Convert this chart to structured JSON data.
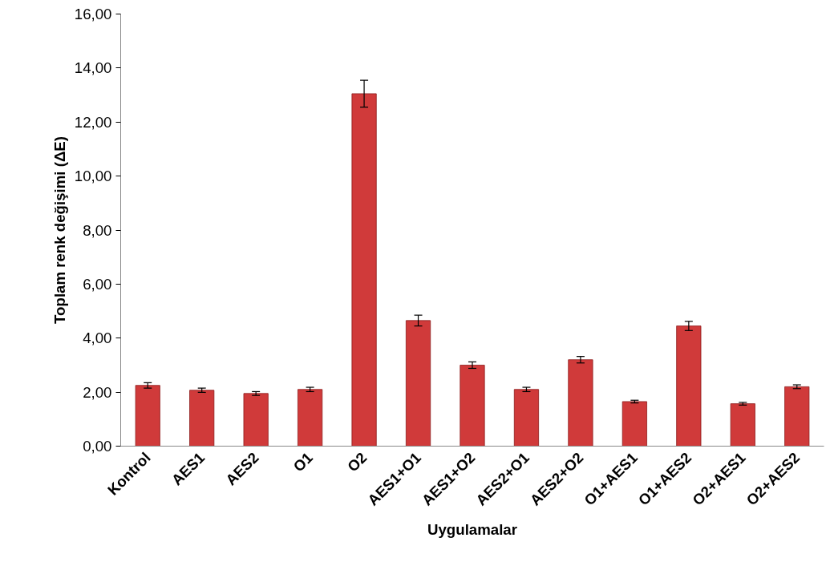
{
  "chart_data": {
    "type": "bar",
    "xlabel": "Uygulamalar",
    "ylabel": "Toplam renk değişimi (ΔE)",
    "categories": [
      "Kontrol",
      "AES1",
      "AES2",
      "O1",
      "O2",
      "AES1+O1",
      "AES1+O2",
      "AES2+O1",
      "AES2+O2",
      "O1+AES1",
      "O1+AES2",
      "O2+AES1",
      "O2+AES2"
    ],
    "values": [
      2.25,
      2.07,
      1.95,
      2.1,
      13.05,
      4.65,
      3.0,
      2.1,
      3.2,
      1.65,
      4.45,
      1.57,
      2.2
    ],
    "errors": [
      0.1,
      0.08,
      0.07,
      0.08,
      0.5,
      0.2,
      0.12,
      0.08,
      0.12,
      0.05,
      0.17,
      0.05,
      0.07
    ],
    "color": "#d03a3a",
    "ylim": [
      0,
      16
    ],
    "yticks": [
      {
        "value": 0,
        "label": "0,00"
      },
      {
        "value": 2,
        "label": "2,00"
      },
      {
        "value": 4,
        "label": "4,00"
      },
      {
        "value": 6,
        "label": "6,00"
      },
      {
        "value": 8,
        "label": "8,00"
      },
      {
        "value": 10,
        "label": "10,00"
      },
      {
        "value": 12,
        "label": "12,00"
      },
      {
        "value": 14,
        "label": "14,00"
      },
      {
        "value": 16,
        "label": "16,00"
      }
    ],
    "grid": false
  }
}
